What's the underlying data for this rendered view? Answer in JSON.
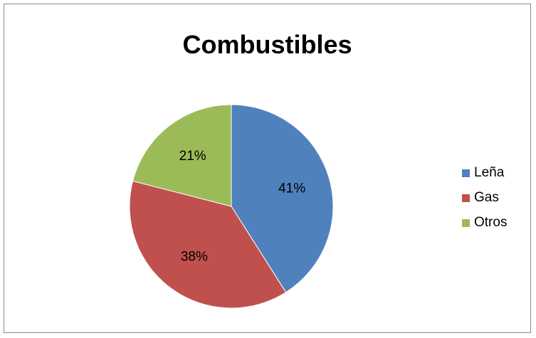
{
  "chart_data": {
    "type": "pie",
    "title": "Combustibles",
    "slices": [
      {
        "label": "Leña",
        "value": 41,
        "display": "41%",
        "color": "#4f81bd"
      },
      {
        "label": "Gas",
        "value": 38,
        "display": "38%",
        "color": "#c0504d"
      },
      {
        "label": "Otros",
        "value": 21,
        "display": "21%",
        "color": "#9bbb59"
      }
    ],
    "legend_position": "right"
  }
}
